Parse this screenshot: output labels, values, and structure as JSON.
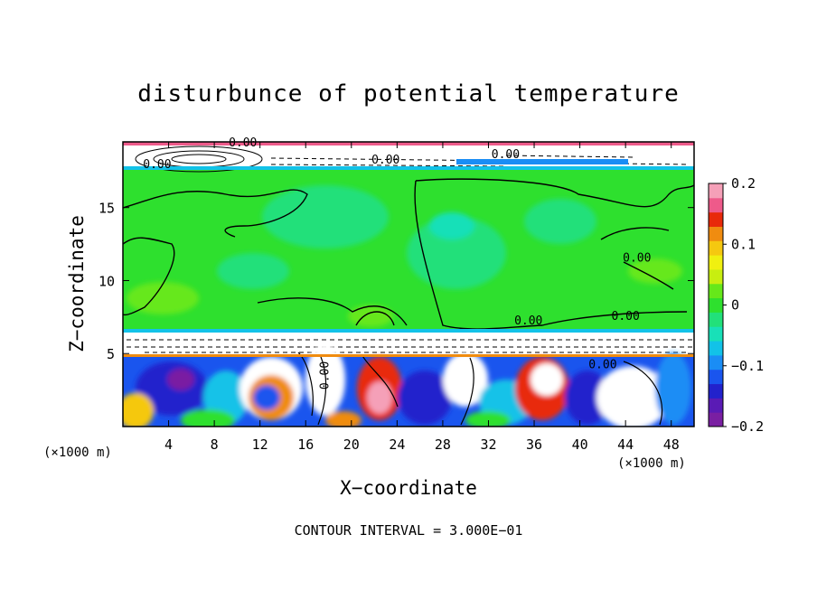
{
  "chart_data": {
    "type": "heatmap",
    "title": "disturbunce of potential temperature",
    "xlabel": "X−coordinate",
    "ylabel": "Z−coordinate",
    "x_unit_left": "(×1000 m)",
    "x_unit_right": "(×1000 m)",
    "xlim": [
      0,
      50
    ],
    "ylim": [
      0,
      19.5
    ],
    "x_ticks": [
      4,
      8,
      12,
      16,
      20,
      24,
      28,
      32,
      36,
      40,
      44,
      48
    ],
    "y_ticks": [
      5,
      10,
      15
    ],
    "contour_interval_text": "CONTOUR INTERVAL = 3.000E−01",
    "contour_labels": [
      "0.00",
      "0.00",
      "0.00",
      "0.00",
      "0.00",
      "0.00",
      "0.00",
      "0.00",
      "0.00"
    ],
    "colorbar": {
      "range": [
        -0.2,
        0.2
      ],
      "tick_labels": [
        "0.2",
        "0.1",
        "0",
        "−0.1",
        "−0.2"
      ],
      "colors": [
        "#7a1fa2",
        "#5a1bb5",
        "#2222cc",
        "#1a55ee",
        "#1a8df5",
        "#12c2e8",
        "#18e0b8",
        "#22e07a",
        "#2ee02e",
        "#66e81a",
        "#c8ee10",
        "#f0f010",
        "#f5c810",
        "#f08c10",
        "#e82a0a",
        "#ee5a8a",
        "#f5a0b8"
      ]
    }
  }
}
